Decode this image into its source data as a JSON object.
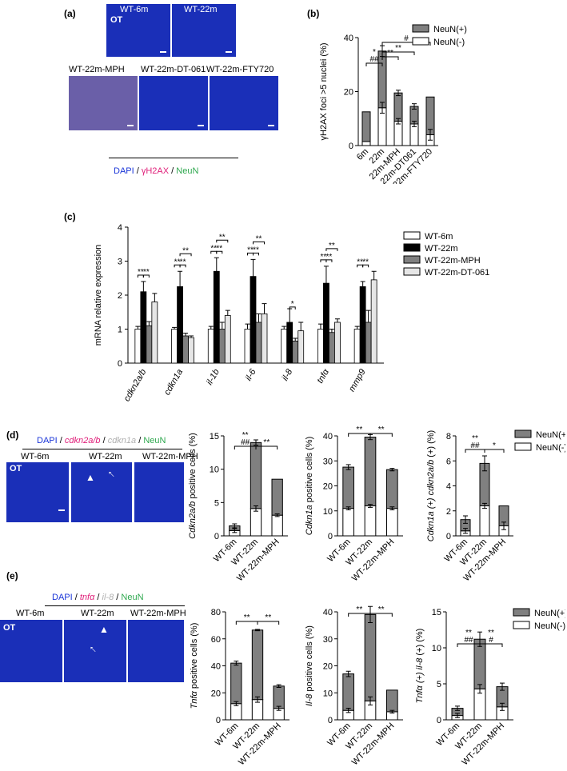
{
  "panels": {
    "a": {
      "label": "(a)",
      "tiles": [
        {
          "caption": "WT-6m",
          "overlay": "OT"
        },
        {
          "caption": "WT-22m",
          "overlay": ""
        },
        {
          "caption": "WT-22m-MPH",
          "overlay": ""
        },
        {
          "caption": "WT-22m-DT-061",
          "overlay": ""
        },
        {
          "caption": "WT-22m-FTY720",
          "overlay": ""
        }
      ],
      "legend": {
        "dapi": "DAPI",
        "sep1": " / ",
        "h2ax": "γH2AX",
        "sep2": " / ",
        "neun": "NeuN"
      }
    },
    "b": {
      "label": "(b)"
    },
    "c": {
      "label": "(c)"
    },
    "d": {
      "label": "(d)",
      "tiles": [
        {
          "caption": "WT-6m",
          "overlay": "OT"
        },
        {
          "caption": "WT-22m",
          "overlay": ""
        },
        {
          "caption": "WT-22m-MPH",
          "overlay": ""
        }
      ],
      "legend": {
        "dapi": "DAPI",
        "sep1": " / ",
        "g1": "cdkn2a/b",
        "sep2": " / ",
        "g2": "cdkn1a",
        "sep3": " / ",
        "neun": "NeuN"
      }
    },
    "e": {
      "label": "(e)",
      "tiles": [
        {
          "caption": "WT-6m",
          "overlay": "OT"
        },
        {
          "caption": "WT-22m",
          "overlay": ""
        },
        {
          "caption": "WT-22m-MPH",
          "overlay": ""
        }
      ],
      "legend": {
        "dapi": "DAPI",
        "sep1": " / ",
        "g1": "tnfα",
        "sep2": " / ",
        "g2": "il-8",
        "sep3": " / ",
        "neun": "NeuN"
      }
    }
  },
  "colors": {
    "neun_pos": "#808080",
    "neun_neg": "#ffffff",
    "wt6m": "#ffffff",
    "wt22m": "#000000",
    "mph": "#808080",
    "dt061": "#e6e6e6",
    "dapi": "#1a35d8",
    "h2ax": "#e0207a",
    "neun": "#2fa84f",
    "cdkn1a": "#b0b0b0"
  },
  "chart_data": [
    {
      "id": "b",
      "type": "bar",
      "stacked": true,
      "categories": [
        "6m",
        "22m",
        "22m-MPH",
        "22m-DT061",
        "22m-FTY720"
      ],
      "series": [
        {
          "name": "NeuN(-)",
          "values": [
            1.5,
            14,
            9,
            8,
            4
          ],
          "errors": [
            0,
            2,
            1,
            1,
            2
          ]
        },
        {
          "name": "NeuN(+)",
          "values": [
            11,
            21,
            10.5,
            6.5,
            14
          ],
          "errors": [
            0,
            2,
            1,
            1,
            0
          ]
        }
      ],
      "ylabel": "γH2AX foci >5 nuclei (%)",
      "ylim": [
        0,
        40
      ],
      "yticks": [
        0,
        20,
        40
      ],
      "legend": [
        "NeuN(+)",
        "NeuN(-)"
      ],
      "annotations": [
        {
          "from": 0,
          "to": 1,
          "text": [
            "*",
            "##"
          ]
        },
        {
          "from": 1,
          "to": 2,
          "text": [
            "**"
          ]
        },
        {
          "from": 1,
          "to": 3,
          "text": [
            "**"
          ]
        },
        {
          "from": 1,
          "to": 4,
          "text": [
            "#"
          ]
        }
      ]
    },
    {
      "id": "c",
      "type": "bar",
      "grouped": true,
      "categories": [
        "cdkn2a/b",
        "cdkn1a",
        "il-1b",
        "il-6",
        "il-8",
        "tnfα",
        "mmp9"
      ],
      "series": [
        {
          "name": "WT-6m",
          "values": [
            1.0,
            1.0,
            1.0,
            1.0,
            1.0,
            1.0,
            1.0
          ],
          "errors": [
            0.08,
            0.05,
            0.08,
            0.15,
            0.08,
            0.15,
            0.08
          ]
        },
        {
          "name": "WT-22m",
          "values": [
            2.1,
            2.25,
            2.7,
            2.55,
            1.2,
            2.35,
            2.25
          ],
          "errors": [
            0.3,
            0.45,
            0.4,
            0.5,
            0.4,
            0.5,
            0.15
          ]
        },
        {
          "name": "WT-22m-MPH",
          "values": [
            1.1,
            0.8,
            1.0,
            1.2,
            0.65,
            0.9,
            1.2
          ],
          "errors": [
            0.12,
            0.08,
            0.2,
            0.25,
            0.08,
            0.1,
            0.35
          ]
        },
        {
          "name": "WT-22m-DT-061",
          "values": [
            1.8,
            0.75,
            1.4,
            1.45,
            0.95,
            1.2,
            2.45
          ],
          "errors": [
            0.25,
            0.05,
            0.15,
            0.3,
            0.25,
            0.1,
            0.25
          ]
        }
      ],
      "ylabel": "mRNA relative expression",
      "ylim": [
        0,
        4
      ],
      "yticks": [
        0,
        1,
        2,
        3,
        4
      ],
      "annotations": [
        {
          "cat": 0,
          "pairs": [
            [
              0,
              1,
              "**"
            ],
            [
              1,
              2,
              "**"
            ]
          ]
        },
        {
          "cat": 1,
          "pairs": [
            [
              0,
              1,
              "**"
            ],
            [
              1,
              2,
              "**"
            ],
            [
              1,
              3,
              "**"
            ]
          ]
        },
        {
          "cat": 2,
          "pairs": [
            [
              0,
              1,
              "**"
            ],
            [
              1,
              2,
              "**"
            ],
            [
              1,
              3,
              "**"
            ]
          ]
        },
        {
          "cat": 3,
          "pairs": [
            [
              0,
              1,
              "**"
            ],
            [
              1,
              2,
              "**"
            ],
            [
              1,
              3,
              "**"
            ]
          ]
        },
        {
          "cat": 4,
          "pairs": [
            [
              1,
              2,
              "*"
            ]
          ]
        },
        {
          "cat": 5,
          "pairs": [
            [
              0,
              1,
              "**"
            ],
            [
              1,
              2,
              "**"
            ],
            [
              1,
              3,
              "**"
            ]
          ]
        },
        {
          "cat": 6,
          "pairs": [
            [
              0,
              1,
              "**"
            ],
            [
              1,
              2,
              "**"
            ]
          ]
        }
      ]
    },
    {
      "id": "d1",
      "type": "bar",
      "stacked": true,
      "categories": [
        "WT-6m",
        "WT-22m",
        "WT-22m-MPH"
      ],
      "series": [
        {
          "name": "NeuN(-)",
          "values": [
            0.8,
            4.1,
            3.1
          ],
          "errors": [
            0.3,
            0.4,
            0.2
          ]
        },
        {
          "name": "NeuN(+)",
          "values": [
            0.7,
            9.9,
            5.4
          ],
          "errors": [
            0.3,
            0.4,
            0
          ]
        }
      ],
      "ylabel_italic": "Cdkn2a/b",
      "ylabel_rest": " positive cells (%)",
      "ylim": [
        0,
        15
      ],
      "yticks": [
        0,
        5,
        10,
        15
      ],
      "annotations": [
        {
          "from": 0,
          "to": 1,
          "text": [
            "**",
            "##"
          ]
        },
        {
          "from": 1,
          "to": 2,
          "text": [
            "**"
          ]
        }
      ]
    },
    {
      "id": "d2",
      "type": "bar",
      "stacked": true,
      "categories": [
        "WT-6m",
        "WT-22m",
        "WT-22m-MPH"
      ],
      "series": [
        {
          "name": "NeuN(-)",
          "values": [
            11,
            12,
            11
          ],
          "errors": [
            0.6,
            0.6,
            0.6
          ]
        },
        {
          "name": "NeuN(+)",
          "values": [
            16.5,
            27.5,
            15.5
          ],
          "errors": [
            1,
            1,
            0.5
          ]
        }
      ],
      "ylabel_italic": "Cdkn1a",
      "ylabel_rest": " positive cells (%)",
      "ylim": [
        0,
        40
      ],
      "yticks": [
        0,
        10,
        20,
        30,
        40
      ],
      "annotations": [
        {
          "from": 0,
          "to": 1,
          "text": [
            "**"
          ]
        },
        {
          "from": 1,
          "to": 2,
          "text": [
            "**"
          ]
        }
      ]
    },
    {
      "id": "d3",
      "type": "bar",
      "stacked": true,
      "categories": [
        "WT-6m",
        "WT-22m",
        "WT-22m-MPH"
      ],
      "series": [
        {
          "name": "NeuN(-)",
          "values": [
            0.4,
            2.4,
            0.8
          ],
          "errors": [
            0.2,
            0.2,
            0.3
          ]
        },
        {
          "name": "NeuN(+)",
          "values": [
            0.9,
            3.4,
            1.6
          ],
          "errors": [
            0.3,
            0.6,
            0
          ]
        }
      ],
      "ylabel_italic": "Cdkn1a (+) cdkn2a/b",
      "ylabel_rest": " (+) (%)",
      "ylim": [
        0,
        8
      ],
      "yticks": [
        0,
        2,
        4,
        6,
        8
      ],
      "legend": [
        "NeuN(+)",
        "NeuN(-)"
      ],
      "annotations": [
        {
          "from": 0,
          "to": 1,
          "text": [
            "**",
            "##"
          ]
        },
        {
          "from": 1,
          "to": 2,
          "text": [
            "*"
          ]
        }
      ]
    },
    {
      "id": "e1",
      "type": "bar",
      "stacked": true,
      "categories": [
        "WT-6m",
        "WT-22m",
        "WT-22m-MPH"
      ],
      "series": [
        {
          "name": "NeuN(-)",
          "values": [
            12,
            15,
            8.5
          ],
          "errors": [
            1.5,
            2,
            1.5
          ]
        },
        {
          "name": "NeuN(+)",
          "values": [
            30,
            51.5,
            16.5
          ],
          "errors": [
            1.5,
            0.5,
            1
          ]
        }
      ],
      "ylabel_italic": "Tnfα",
      "ylabel_rest": " positive cells (%)",
      "ylim": [
        0,
        80
      ],
      "yticks": [
        0,
        20,
        40,
        60,
        80
      ],
      "annotations": [
        {
          "from": 0,
          "to": 1,
          "text": [
            "**"
          ]
        },
        {
          "from": 1,
          "to": 2,
          "text": [
            "**"
          ]
        }
      ]
    },
    {
      "id": "e2",
      "type": "bar",
      "stacked": true,
      "categories": [
        "WT-6m",
        "WT-22m",
        "WT-22m-MPH"
      ],
      "series": [
        {
          "name": "NeuN(-)",
          "values": [
            3.5,
            7,
            3
          ],
          "errors": [
            0.8,
            1.5,
            0.5
          ]
        },
        {
          "name": "NeuN(+)",
          "values": [
            13.5,
            32,
            8
          ],
          "errors": [
            1,
            3,
            0
          ]
        }
      ],
      "ylabel_italic": "Il-8",
      "ylabel_rest": " positive cells (%)",
      "ylim": [
        0,
        40
      ],
      "yticks": [
        0,
        10,
        20,
        30,
        40
      ],
      "annotations": [
        {
          "from": 0,
          "to": 1,
          "text": [
            "**"
          ]
        },
        {
          "from": 1,
          "to": 2,
          "text": [
            "**"
          ]
        }
      ]
    },
    {
      "id": "e3",
      "type": "bar",
      "stacked": true,
      "categories": [
        "WT-6m",
        "WT-22m",
        "WT-22m-MPH"
      ],
      "series": [
        {
          "name": "NeuN(-)",
          "values": [
            0.6,
            4.3,
            1.8
          ],
          "errors": [
            0.3,
            0.6,
            0.5
          ]
        },
        {
          "name": "NeuN(+)",
          "values": [
            1.0,
            6.9,
            2.8
          ],
          "errors": [
            0.3,
            1,
            0.5
          ]
        }
      ],
      "ylabel_italic": "Tnfα (+) il-8",
      "ylabel_rest": " (+) (%)",
      "ylim": [
        0,
        15
      ],
      "yticks": [
        0,
        5,
        10,
        15
      ],
      "legend": [
        "NeuN(+)",
        "NeuN(-)"
      ],
      "annotations": [
        {
          "from": 0,
          "to": 1,
          "text": [
            "**",
            "##"
          ]
        },
        {
          "from": 1,
          "to": 2,
          "text": [
            "**",
            "#"
          ]
        }
      ]
    }
  ]
}
